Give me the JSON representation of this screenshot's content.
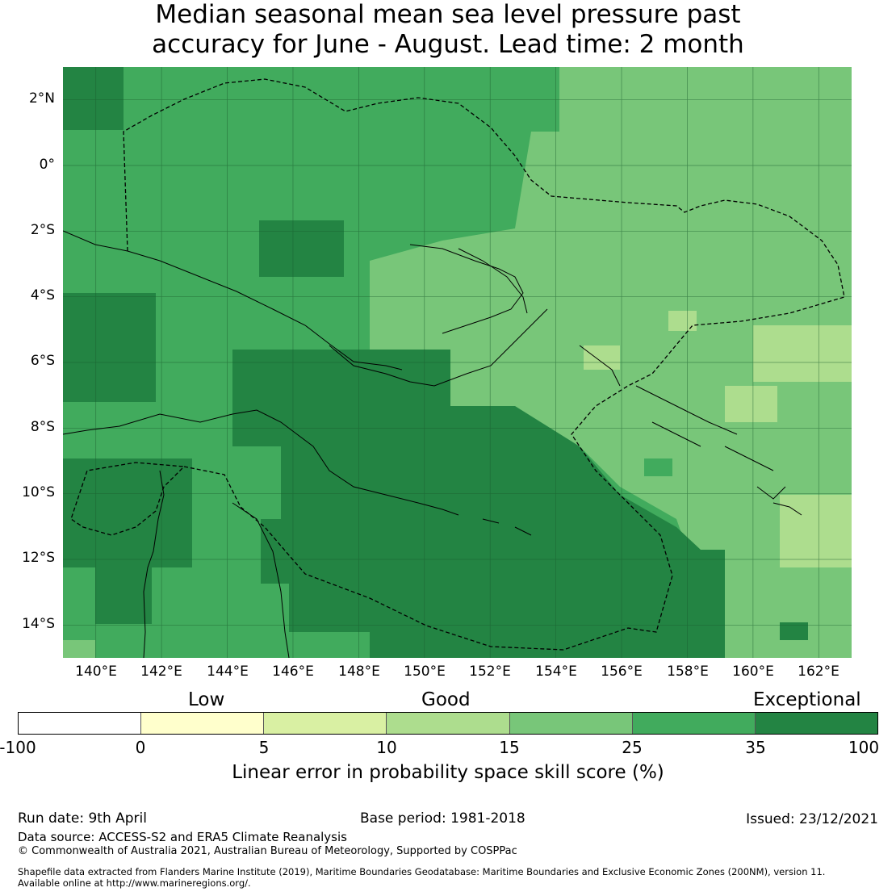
{
  "title": {
    "line1": "Median seasonal mean sea level pressure past",
    "line2": "accuracy for June - August. Lead time: 2 month"
  },
  "map": {
    "lat_labels": [
      "2°N",
      "0°",
      "2°S",
      "4°S",
      "6°S",
      "8°S",
      "10°S",
      "12°S",
      "14°S"
    ],
    "lon_labels": [
      "140°E",
      "142°E",
      "144°E",
      "146°E",
      "148°E",
      "150°E",
      "152°E",
      "154°E",
      "156°E",
      "158°E",
      "160°E",
      "162°E"
    ],
    "lat_values": [
      2,
      0,
      -2,
      -4,
      -6,
      -8,
      -10,
      -12,
      -14
    ],
    "lon_values": [
      140,
      142,
      144,
      146,
      148,
      150,
      152,
      154,
      156,
      158,
      160,
      162
    ],
    "extent": {
      "lon_min": 139,
      "lon_max": 163,
      "lat_min": -15,
      "lat_max": 3
    }
  },
  "colorbar": {
    "categories": [
      "Low",
      "Good",
      "Exceptional"
    ],
    "ticks": [
      "-100",
      "0",
      "5",
      "10",
      "15",
      "25",
      "35",
      "100"
    ],
    "colors": [
      "#ffffff",
      "#ffffcc",
      "#d9f0a3",
      "#addd8e",
      "#78c679",
      "#41ab5d",
      "#238443"
    ],
    "label": "Linear error in probability space skill score (%)"
  },
  "footer": {
    "run_date": "Run date: 9th April",
    "base_period": "Base period: 1981-2018",
    "issued": "Issued: 23/12/2021",
    "data_source": "Data source: ACCESS-S2 and ERA5 Climate Reanalysis",
    "copyright": "© Commonwealth of Australia 2021, Australian Bureau of Meteorology, Supported by COSPPac",
    "shapefile_line1": "Shapefile data extracted from Flanders Marine Institute (2019), Maritime Boundaries Geodatabase: Maritime Boundaries and Exclusive Economic Zones (200NM), version 11.",
    "shapefile_line2": "Available online at http://www.marineregions.org/."
  }
}
